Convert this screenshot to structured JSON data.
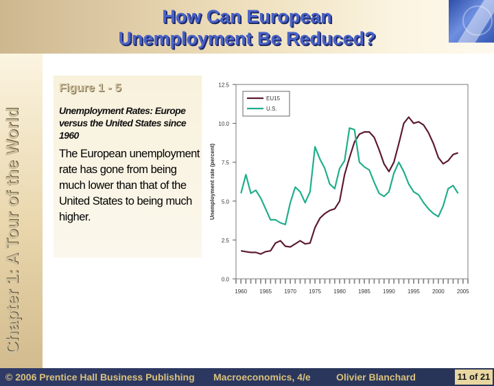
{
  "slide": {
    "title_line1": "How Can European",
    "title_line2": "Unemployment Be Reduced?",
    "chapter": "Chapter 1: A Tour of the World",
    "figure_label": "Figure 1 - 5",
    "caption": "Unemployment Rates: Europe versus the United States since 1960",
    "description": "The European unemployment rate has gone from being much lower than that of the United States to being much higher."
  },
  "footer": {
    "copyright": "© 2006 Prentice Hall Business Publishing",
    "book": "Macroeconomics, 4/e",
    "author": "Olivier Blanchard",
    "slide_current": "11",
    "slide_of": "of 21"
  },
  "colors": {
    "title_fill": "#4a63c8",
    "eu15": "#5b1a30",
    "us": "#1fad8a",
    "footer_text": "#d9c27d"
  },
  "chart_data": {
    "type": "line",
    "ylabel": "Unemployment rate (percent)",
    "xlabel": "",
    "xlim": [
      1959,
      2006
    ],
    "ylim": [
      0,
      12.5
    ],
    "xticks": [
      1960,
      1965,
      1970,
      1975,
      1980,
      1985,
      1990,
      1995,
      2000,
      2005
    ],
    "yticks": [
      "0.0",
      "2.5",
      "5.0",
      "7.5",
      "10.0",
      "12.5"
    ],
    "legend_position": "top-left",
    "series": [
      {
        "name": "EU15",
        "color": "#5b1a30",
        "x": [
          1960,
          1961,
          1962,
          1963,
          1964,
          1965,
          1966,
          1967,
          1968,
          1969,
          1970,
          1971,
          1972,
          1973,
          1974,
          1975,
          1976,
          1977,
          1978,
          1979,
          1980,
          1981,
          1982,
          1983,
          1984,
          1985,
          1986,
          1987,
          1988,
          1989,
          1990,
          1991,
          1992,
          1993,
          1994,
          1995,
          1996,
          1997,
          1998,
          1999,
          2000,
          2001,
          2002,
          2003,
          2004
        ],
        "y": [
          1.8,
          1.75,
          1.7,
          1.7,
          1.6,
          1.75,
          1.8,
          2.3,
          2.45,
          2.1,
          2.05,
          2.25,
          2.45,
          2.25,
          2.3,
          3.3,
          3.9,
          4.2,
          4.4,
          4.5,
          5.0,
          6.7,
          7.8,
          8.8,
          9.3,
          9.45,
          9.45,
          9.1,
          8.3,
          7.4,
          6.9,
          7.5,
          8.7,
          10.0,
          10.4,
          10.0,
          10.1,
          9.9,
          9.4,
          8.7,
          7.8,
          7.4,
          7.6,
          8.0,
          8.1
        ]
      },
      {
        "name": "U.S.",
        "color": "#1fad8a",
        "x": [
          1960,
          1961,
          1962,
          1963,
          1964,
          1965,
          1966,
          1967,
          1968,
          1969,
          1970,
          1971,
          1972,
          1973,
          1974,
          1975,
          1976,
          1977,
          1978,
          1979,
          1980,
          1981,
          1982,
          1983,
          1984,
          1985,
          1986,
          1987,
          1988,
          1989,
          1990,
          1991,
          1992,
          1993,
          1994,
          1995,
          1996,
          1997,
          1998,
          1999,
          2000,
          2001,
          2002,
          2003,
          2004
        ],
        "y": [
          5.5,
          6.7,
          5.5,
          5.7,
          5.2,
          4.5,
          3.8,
          3.8,
          3.6,
          3.5,
          4.9,
          5.9,
          5.6,
          4.9,
          5.6,
          8.5,
          7.7,
          7.1,
          6.1,
          5.8,
          7.1,
          7.6,
          9.7,
          9.6,
          7.5,
          7.2,
          7.0,
          6.2,
          5.5,
          5.3,
          5.6,
          6.8,
          7.5,
          6.9,
          6.1,
          5.6,
          5.4,
          4.9,
          4.5,
          4.2,
          4.0,
          4.7,
          5.8,
          6.0,
          5.5
        ]
      }
    ]
  }
}
